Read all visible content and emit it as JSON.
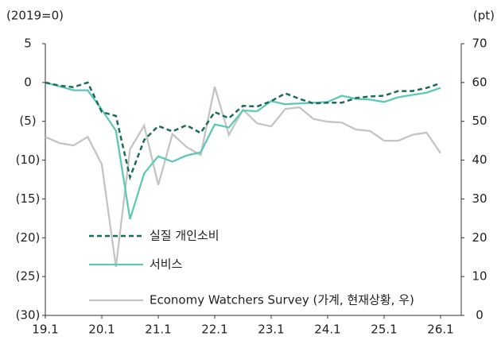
{
  "chart_data": {
    "type": "line",
    "y_axis_label": "(2019=0)",
    "y2_axis_label": "(pt)",
    "categories": [
      "19.1",
      null,
      null,
      null,
      "20.1",
      null,
      null,
      null,
      "21.1",
      null,
      null,
      null,
      "22.1",
      null,
      null,
      null,
      "23.1",
      null,
      null,
      null,
      "24.1",
      null,
      null,
      null,
      "25.1",
      null,
      null,
      null,
      "26.1"
    ],
    "series": [
      {
        "name": "실질 개인소비",
        "color": "#1b6b5a",
        "dashed": true,
        "values": [
          0,
          -0.4,
          -0.6,
          0,
          -3.8,
          -4.3,
          -12.2,
          -7.4,
          -5.6,
          -6.3,
          -5.5,
          -6.5,
          -3.8,
          -4.6,
          -3.0,
          -3.1,
          -2.4,
          -1.4,
          -2.1,
          -2.7,
          -2.6,
          -2.6,
          -2.0,
          -1.8,
          -1.7,
          -1.1,
          -1.1,
          -0.7,
          -0.1
        ]
      },
      {
        "name": "서비스",
        "color": "#5ec8b8",
        "values": [
          0,
          -0.5,
          -1.0,
          -1.0,
          -3.5,
          -6.2,
          -17.6,
          -11.7,
          -9.5,
          -10.2,
          -9.4,
          -9.0,
          -5.4,
          -5.8,
          -3.6,
          -3.7,
          -2.4,
          -2.8,
          -2.7,
          -2.6,
          -2.5,
          -1.7,
          -2.1,
          -2.2,
          -2.5,
          -1.9,
          -1.6,
          -1.3,
          -0.7
        ]
      },
      {
        "name": "Economy Watchers Survey (가계, 현재상황, 우)",
        "color": "#c4c4c4",
        "axis": "y2",
        "values": [
          46.0,
          44.4,
          43.8,
          46.0,
          38.9,
          12.5,
          42.8,
          48.9,
          33.6,
          46.7,
          43.4,
          41.3,
          58.9,
          46.5,
          53.0,
          49.5,
          48.7,
          53.2,
          53.6,
          50.6,
          49.9,
          49.7,
          47.9,
          47.5,
          45.0,
          45.0,
          46.5,
          47.1,
          41.8
        ]
      }
    ],
    "ylim": [
      -30,
      5
    ],
    "yticks": [
      5,
      0,
      {
        "value": -5,
        "label": "(5)"
      },
      {
        "value": -10,
        "label": "(10)"
      },
      {
        "value": -15,
        "label": "(15)"
      },
      {
        "value": -20,
        "label": "(20)"
      },
      {
        "value": -25,
        "label": "(25)"
      },
      {
        "value": -30,
        "label": "(30)"
      }
    ],
    "y2lim": [
      0,
      70
    ],
    "y2ticks": [
      0,
      10,
      20,
      30,
      40,
      50,
      60,
      70
    ]
  }
}
